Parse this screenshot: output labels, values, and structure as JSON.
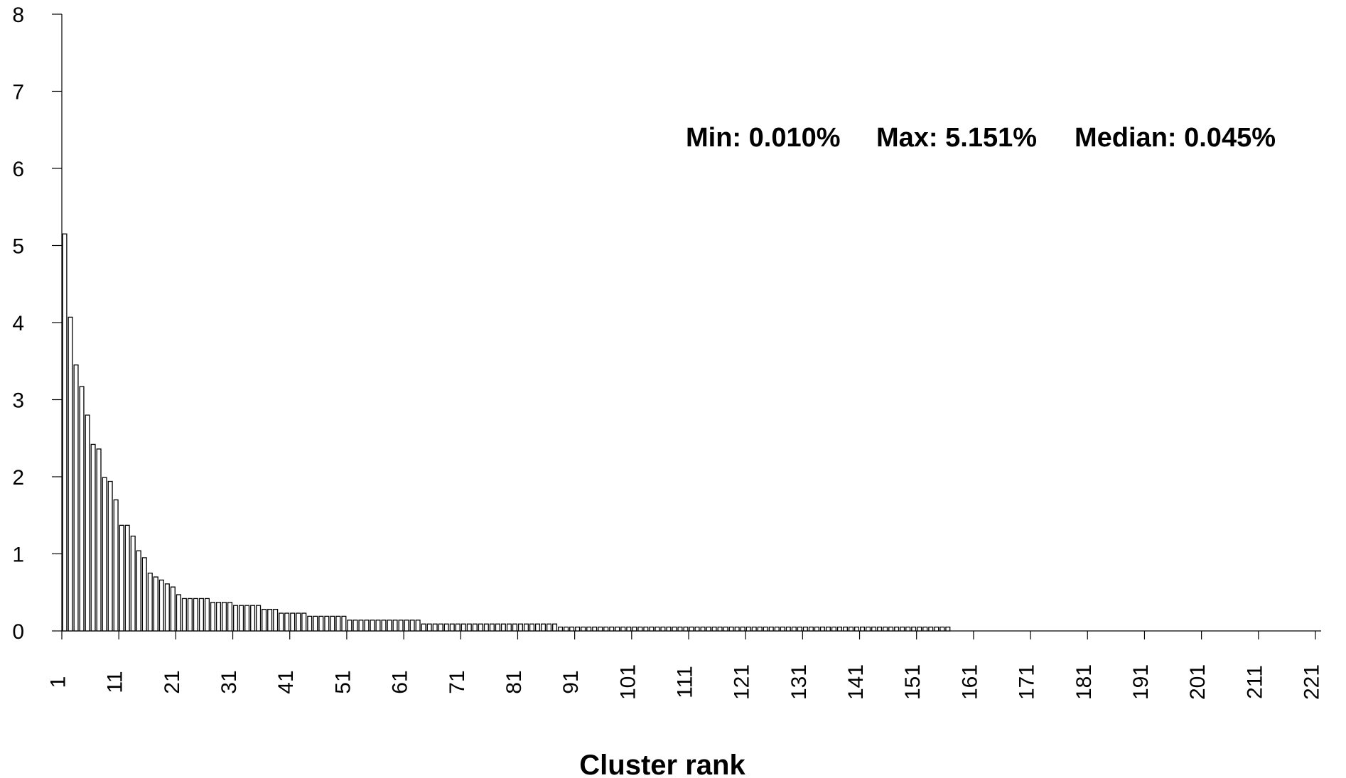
{
  "chart_data": {
    "type": "bar",
    "title": "",
    "xlabel": "Cluster rank",
    "ylabel": "",
    "ylim": [
      0,
      8
    ],
    "xlim": [
      1,
      221
    ],
    "yticks": [
      "0",
      "1",
      "2",
      "3",
      "4",
      "5",
      "6",
      "7",
      "8"
    ],
    "xticks": [
      "1",
      "11",
      "21",
      "31",
      "41",
      "51",
      "61",
      "71",
      "81",
      "91",
      "101",
      "111",
      "121",
      "131",
      "141",
      "151",
      "161",
      "171",
      "181",
      "191",
      "201",
      "211",
      "221"
    ],
    "annotation": {
      "min": "Min: 0.010%",
      "max": "Max: 5.151%",
      "median": "Median: 0.045%"
    },
    "grid": false,
    "legend": "none",
    "bar_fill": "#ffffff",
    "bar_stroke": "#000000",
    "values": [
      5.15,
      4.07,
      3.45,
      3.17,
      2.8,
      2.42,
      2.36,
      1.99,
      1.94,
      1.7,
      1.37,
      1.37,
      1.23,
      1.04,
      0.95,
      0.75,
      0.7,
      0.66,
      0.61,
      0.57,
      0.47,
      0.42,
      0.42,
      0.42,
      0.42,
      0.42,
      0.37,
      0.37,
      0.37,
      0.37,
      0.33,
      0.33,
      0.33,
      0.33,
      0.33,
      0.28,
      0.28,
      0.28,
      0.23,
      0.23,
      0.23,
      0.23,
      0.23,
      0.19,
      0.19,
      0.19,
      0.19,
      0.19,
      0.19,
      0.19,
      0.14,
      0.14,
      0.14,
      0.14,
      0.14,
      0.14,
      0.14,
      0.14,
      0.14,
      0.14,
      0.14,
      0.14,
      0.14,
      0.09,
      0.09,
      0.09,
      0.09,
      0.09,
      0.09,
      0.09,
      0.09,
      0.09,
      0.09,
      0.09,
      0.09,
      0.09,
      0.09,
      0.09,
      0.09,
      0.09,
      0.09,
      0.09,
      0.09,
      0.09,
      0.09,
      0.09,
      0.09,
      0.05,
      0.05,
      0.05,
      0.05,
      0.05,
      0.05,
      0.05,
      0.05,
      0.05,
      0.05,
      0.05,
      0.05,
      0.05,
      0.05,
      0.05,
      0.05,
      0.05,
      0.05,
      0.05,
      0.05,
      0.05,
      0.05,
      0.05,
      0.05,
      0.05,
      0.05,
      0.05,
      0.05,
      0.05,
      0.05,
      0.05,
      0.05,
      0.05,
      0.05,
      0.05,
      0.05,
      0.05,
      0.05,
      0.05,
      0.05,
      0.05,
      0.05,
      0.05,
      0.05,
      0.05,
      0.05,
      0.05,
      0.05,
      0.05,
      0.05,
      0.05,
      0.05,
      0.05,
      0.05,
      0.05,
      0.05,
      0.05,
      0.05,
      0.05,
      0.05,
      0.05,
      0.05,
      0.05,
      0.05,
      0.05,
      0.05,
      0.05,
      0.05,
      0.05
    ]
  }
}
